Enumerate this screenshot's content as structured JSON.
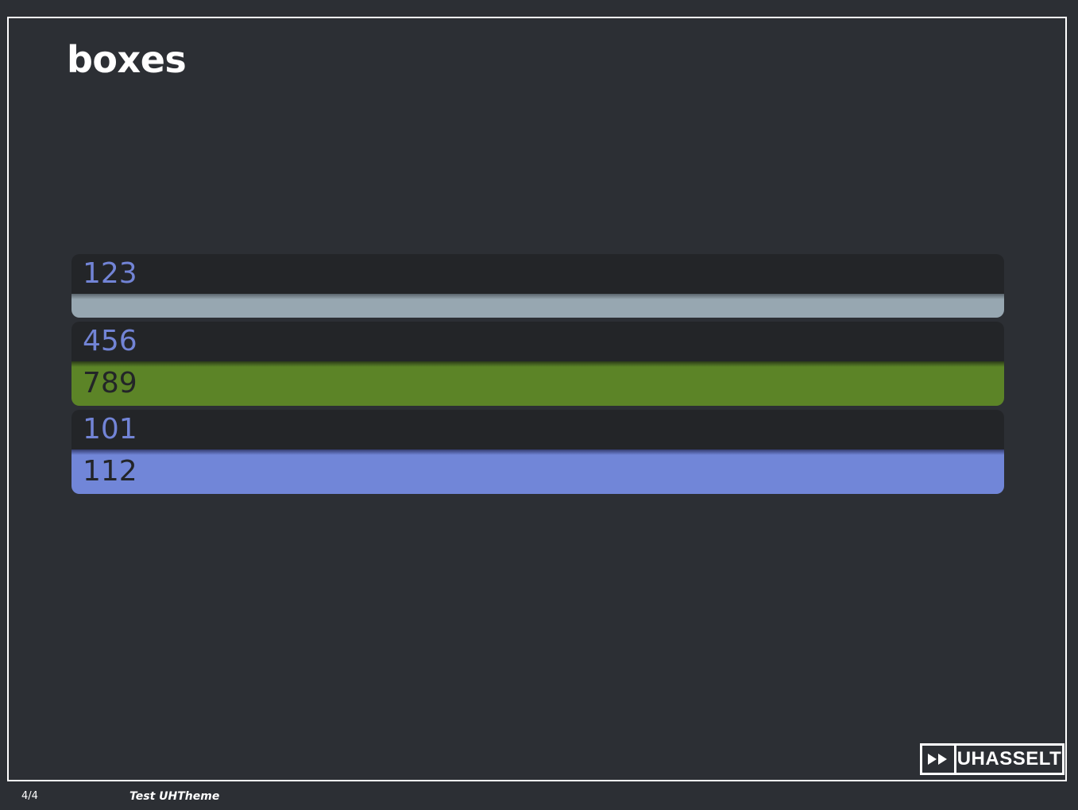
{
  "slide": {
    "title": "boxes"
  },
  "blocks": [
    {
      "head": "123",
      "body": ""
    },
    {
      "head": "456",
      "body": "789"
    },
    {
      "head": "101",
      "body": "112"
    }
  ],
  "colors": {
    "background": "#2c2f34",
    "block_head": "#232528",
    "head_text": "#7284d6",
    "body_gray": "#97a7b1",
    "body_green": "#5c8427",
    "body_blue": "#7186d8"
  },
  "logo": {
    "icon": "fast-forward-icon",
    "text": "UHASSELT"
  },
  "footer": {
    "page": "4/4",
    "title": "Test UHTheme"
  }
}
